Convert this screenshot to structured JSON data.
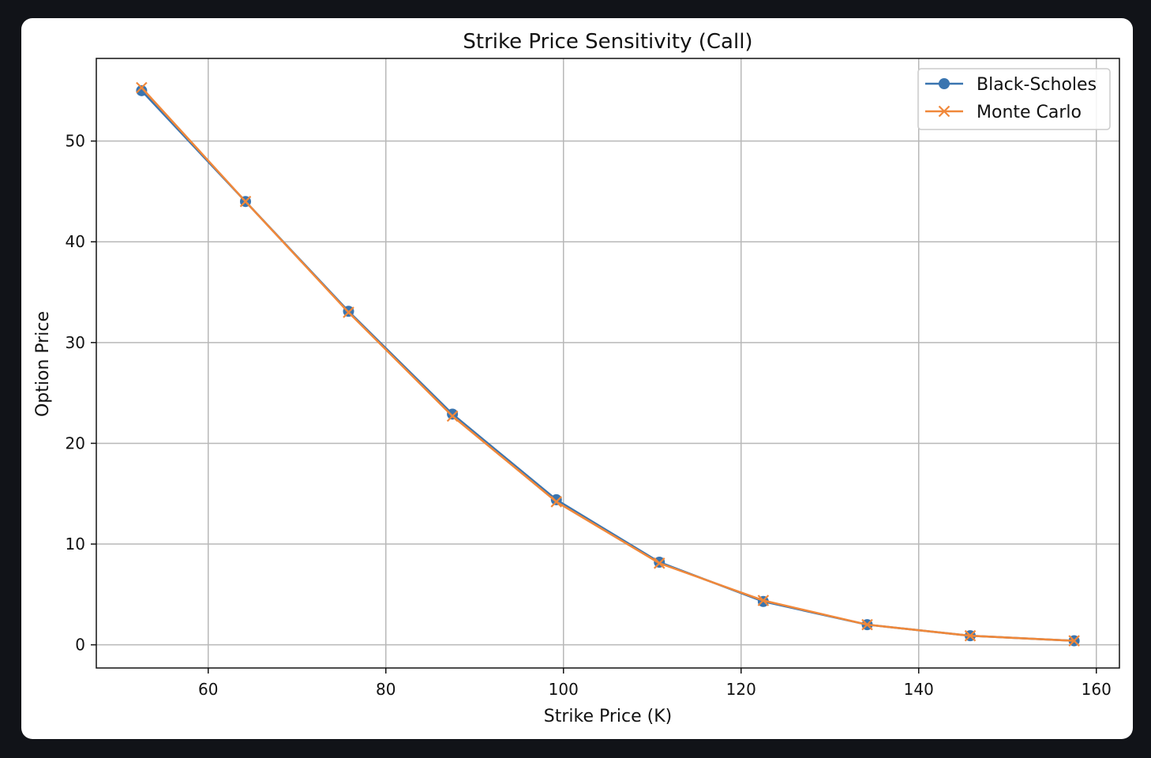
{
  "colors": {
    "background": "#111318",
    "card": "#ffffff",
    "black_scholes": "#3a75b0",
    "monte_carlo": "#f0883a"
  },
  "chart_data": {
    "type": "line",
    "title": "Strike Price Sensitivity (Call)",
    "xlabel": "Strike Price (K)",
    "ylabel": "Option Price",
    "xlim": [
      47.4,
      162.6
    ],
    "ylim": [
      -2.3,
      58.2
    ],
    "xticks": [
      60,
      80,
      100,
      120,
      140,
      160
    ],
    "yticks": [
      0,
      10,
      20,
      30,
      40,
      50
    ],
    "grid": true,
    "legend_position": "top-right",
    "x": [
      52.5,
      64.2,
      75.8,
      87.5,
      99.2,
      110.8,
      122.5,
      134.2,
      145.8,
      157.5
    ],
    "series": [
      {
        "name": "Black-Scholes",
        "marker": "circle",
        "color": "#3a75b0",
        "values": [
          55.0,
          44.0,
          33.1,
          22.9,
          14.4,
          8.2,
          4.3,
          2.0,
          0.9,
          0.4
        ]
      },
      {
        "name": "Monte Carlo",
        "marker": "x",
        "color": "#f0883a",
        "values": [
          55.3,
          44.0,
          33.0,
          22.7,
          14.2,
          8.1,
          4.4,
          2.0,
          0.9,
          0.4
        ]
      }
    ]
  }
}
